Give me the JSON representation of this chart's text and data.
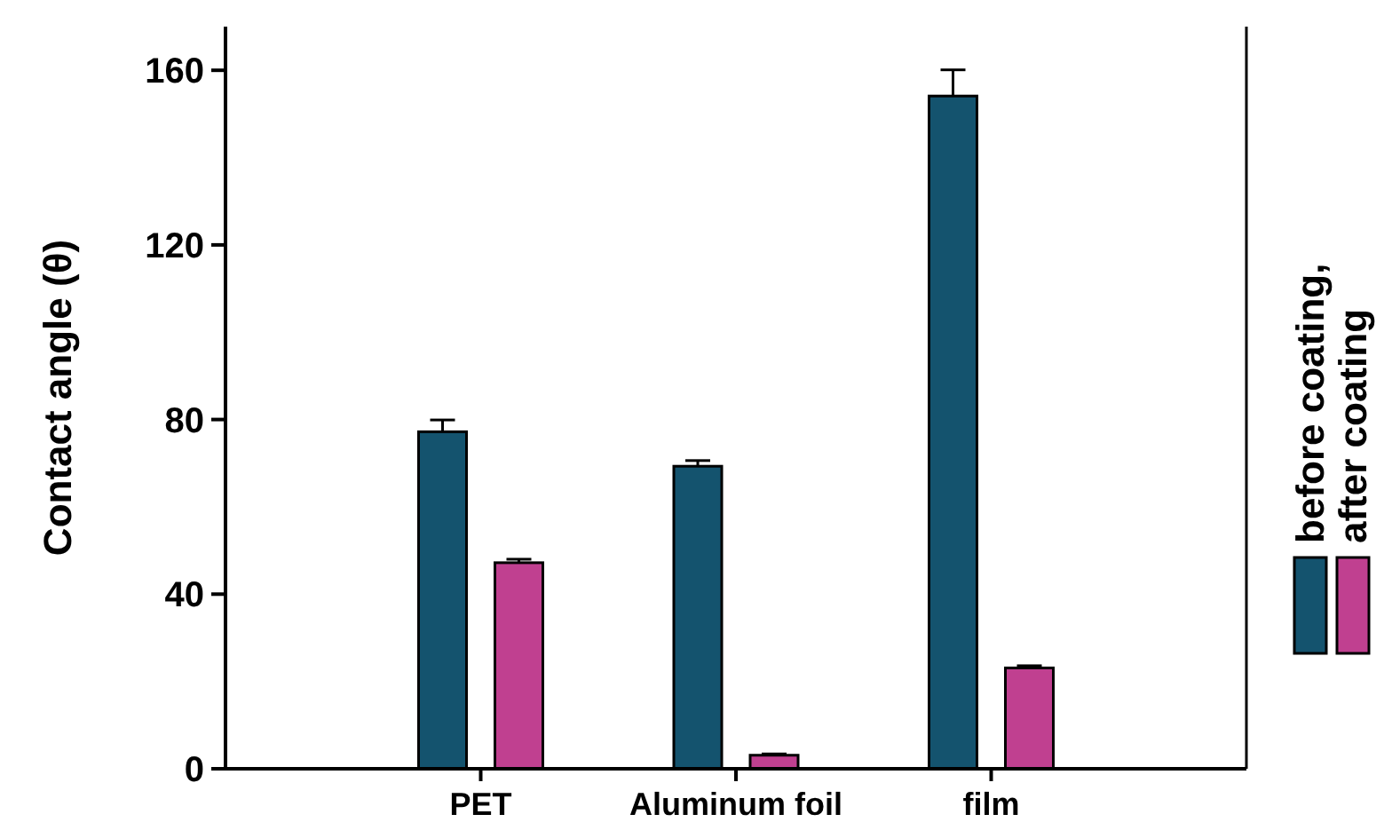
{
  "chart_data": {
    "type": "bar",
    "ylabel": "Contact angle (θ)",
    "categories": [
      "PET",
      "Aluminum foil",
      "film"
    ],
    "series": [
      {
        "name": "before coating,",
        "color": "#14536e",
        "values": [
          77.2,
          69.3,
          154.1
        ],
        "errors": [
          2.7,
          1.3,
          6
        ]
      },
      {
        "name": "after coating",
        "color": "#c04090",
        "values": [
          47.2,
          3.1,
          23.1
        ],
        "errors": [
          0.8,
          0.3,
          0.5
        ]
      }
    ],
    "ylim": [
      0,
      170
    ],
    "yticks": [
      0,
      40,
      80,
      120,
      160
    ],
    "legend": "right",
    "grid": false
  }
}
